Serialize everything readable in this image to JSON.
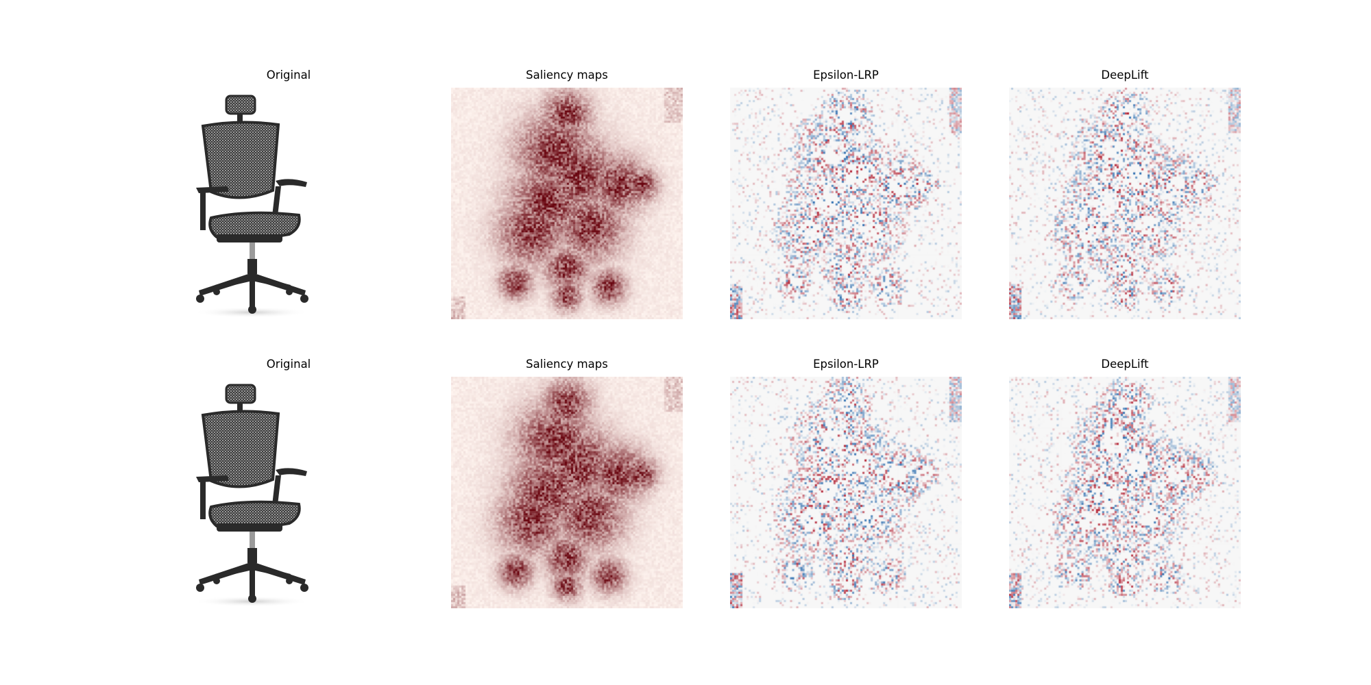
{
  "figure": {
    "rows": [
      {
        "panels": [
          {
            "title": "Original",
            "kind": "image",
            "icon": "office-chair-image"
          },
          {
            "title": "Saliency maps",
            "kind": "heatmap",
            "colormap": "Reds"
          },
          {
            "title": "Epsilon-LRP",
            "kind": "heatmap",
            "colormap": "RdBu_r"
          },
          {
            "title": "DeepLift",
            "kind": "heatmap",
            "colormap": "RdBu_r"
          }
        ]
      },
      {
        "panels": [
          {
            "title": "Original",
            "kind": "image",
            "icon": "office-chair-image"
          },
          {
            "title": "Saliency maps",
            "kind": "heatmap",
            "colormap": "Reds"
          },
          {
            "title": "Epsilon-LRP",
            "kind": "heatmap",
            "colormap": "RdBu_r"
          },
          {
            "title": "DeepLift",
            "kind": "heatmap",
            "colormap": "RdBu_r"
          }
        ]
      }
    ],
    "colors": {
      "background": "#ffffff",
      "chair": "#2a2a2a",
      "positive": "#b2182b",
      "negative": "#2166ac",
      "neutral": "#f7f7f7"
    }
  }
}
